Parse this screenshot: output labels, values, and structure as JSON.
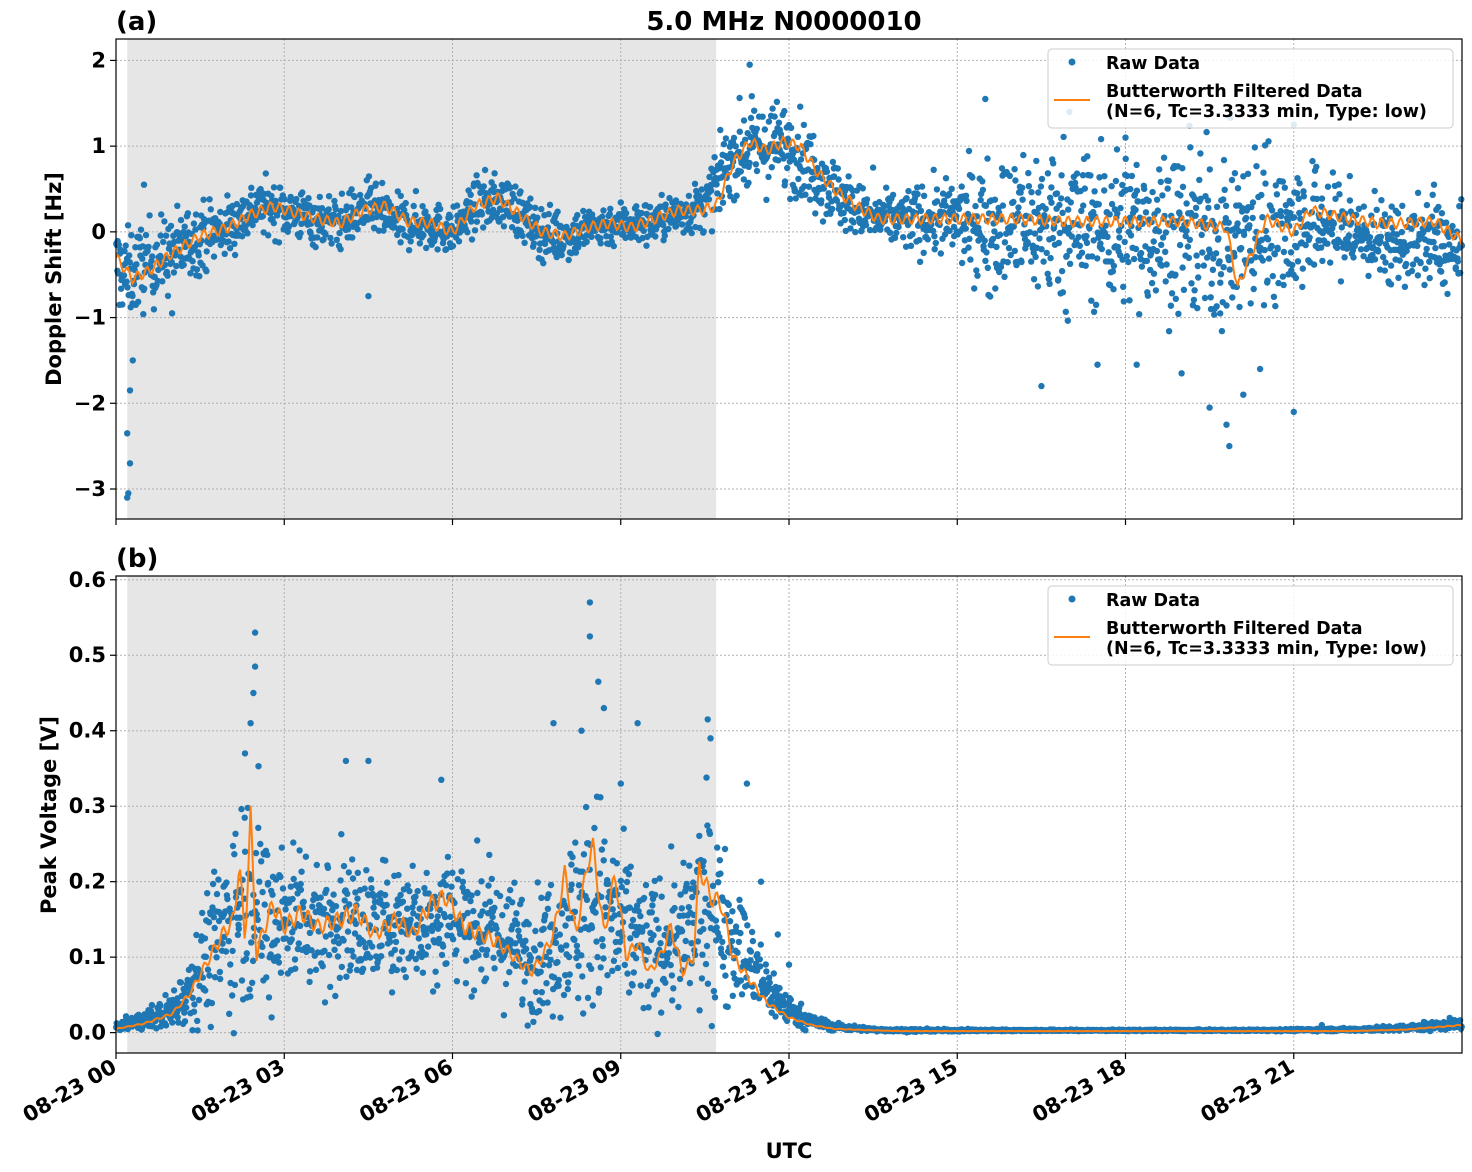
{
  "figure": {
    "title": "5.0 MHz N0000010",
    "xlabel": "UTC",
    "x_tick_labels": [
      "08-23 00",
      "08-23 03",
      "08-23 06",
      "08-23 09",
      "08-23 12",
      "08-23 15",
      "08-23 18",
      "08-23 21"
    ]
  },
  "colors": {
    "raw": "#1f77b4",
    "filtered": "#ff7f0e",
    "night_shade": "#e6e6e6",
    "grid": "#b0b0b0"
  },
  "chart_data": [
    {
      "panel": "(a)",
      "type": "scatter",
      "ylabel": "Doppler Shift [Hz]",
      "x_unit_hours_utc": [
        0,
        24
      ],
      "xlim_hours": [
        0,
        24
      ],
      "ylim": [
        -3.35,
        2.25
      ],
      "y_ticks": [
        -3,
        -2,
        -1,
        0,
        1,
        2
      ],
      "y_tick_labels": [
        "−3",
        "−2",
        "−1",
        "0",
        "1",
        "2"
      ],
      "shaded_interval_hours": [
        0.2,
        10.7
      ],
      "grid": true,
      "legend_position": "upper right",
      "legend": [
        "Raw Data",
        "Butterworth Filtered Data",
        "(N=6, Tc=3.3333 min, Type: low)"
      ],
      "series": [
        {
          "name": "Butterworth Filtered Data",
          "style": "line",
          "x_hours": [
            0,
            0.3,
            0.6,
            1.0,
            1.5,
            2.0,
            2.4,
            2.8,
            3.2,
            3.6,
            4.0,
            4.4,
            4.8,
            5.2,
            5.6,
            6.0,
            6.4,
            6.8,
            7.2,
            7.6,
            8.0,
            8.4,
            8.8,
            9.2,
            9.6,
            10.0,
            10.4,
            10.7,
            11.0,
            11.3,
            11.6,
            11.9,
            12.2,
            12.5,
            12.8,
            13.2,
            13.6,
            14.0,
            15.0,
            16.0,
            17.0,
            18.0,
            19.0,
            19.8,
            20.0,
            20.5,
            21.0,
            21.3,
            22.0,
            22.5,
            23.0,
            23.5,
            24.0
          ],
          "y": [
            -0.3,
            -0.55,
            -0.45,
            -0.25,
            -0.05,
            0.05,
            0.2,
            0.3,
            0.22,
            0.15,
            0.1,
            0.25,
            0.3,
            0.12,
            0.1,
            0.0,
            0.3,
            0.4,
            0.2,
            0.0,
            -0.05,
            0.05,
            0.1,
            0.05,
            0.15,
            0.25,
            0.25,
            0.3,
            0.8,
            1.05,
            0.95,
            1.05,
            1.0,
            0.7,
            0.5,
            0.3,
            0.15,
            0.15,
            0.15,
            0.15,
            0.12,
            0.12,
            0.12,
            0.05,
            -0.65,
            0.15,
            0.0,
            0.25,
            0.15,
            0.1,
            0.1,
            0.12,
            -0.1
          ]
        },
        {
          "name": "Raw Data",
          "style": "points",
          "x_hours": [
            0,
            0.2,
            0.5,
            1.0,
            1.5,
            2.0,
            2.5,
            3.0,
            3.5,
            4.0,
            4.5,
            5.0,
            5.5,
            6.0,
            6.5,
            7.0,
            7.5,
            8.0,
            8.5,
            9.0,
            9.5,
            10.0,
            10.5,
            11.0,
            11.5,
            12.0,
            12.5,
            13.0,
            13.5,
            14.0,
            15.0,
            15.5,
            16.0,
            16.5,
            17.0,
            17.5,
            18.0,
            18.5,
            19.0,
            19.5,
            20.0,
            20.5,
            21.0,
            21.5,
            22.0,
            22.5,
            23.0,
            23.5,
            24.0
          ],
          "y_center": [
            -0.4,
            -0.5,
            -0.4,
            -0.25,
            -0.05,
            0.05,
            0.3,
            0.25,
            0.15,
            0.1,
            0.3,
            0.1,
            0.1,
            0.0,
            0.35,
            0.35,
            0.0,
            -0.05,
            0.05,
            0.1,
            0.1,
            0.2,
            0.3,
            0.9,
            1.0,
            1.0,
            0.7,
            0.35,
            0.15,
            0.15,
            0.15,
            0.1,
            0.1,
            0.1,
            0.1,
            0.05,
            0.05,
            0.05,
            0.0,
            -0.1,
            -0.1,
            0.1,
            0.05,
            0.1,
            0.0,
            -0.1,
            -0.15,
            -0.1,
            -0.3
          ],
          "y_spread": [
            0.5,
            0.5,
            0.5,
            0.45,
            0.4,
            0.35,
            0.3,
            0.3,
            0.3,
            0.3,
            0.3,
            0.3,
            0.3,
            0.25,
            0.3,
            0.3,
            0.3,
            0.3,
            0.25,
            0.25,
            0.25,
            0.25,
            0.3,
            0.45,
            0.5,
            0.5,
            0.45,
            0.35,
            0.25,
            0.35,
            0.45,
            0.75,
            0.75,
            0.9,
            0.9,
            0.9,
            0.9,
            0.9,
            0.9,
            1.0,
            1.0,
            0.9,
            0.8,
            0.6,
            0.5,
            0.45,
            0.45,
            0.5,
            0.5
          ],
          "outliers": [
            [
              0.2,
              -3.1
            ],
            [
              0.22,
              -3.05
            ],
            [
              0.25,
              -2.7
            ],
            [
              0.2,
              -2.35
            ],
            [
              0.25,
              -1.85
            ],
            [
              0.3,
              -1.5
            ],
            [
              0.5,
              0.55
            ],
            [
              1.0,
              -0.95
            ],
            [
              4.5,
              -0.75
            ],
            [
              11.3,
              1.95
            ],
            [
              13.5,
              0.75
            ],
            [
              15.5,
              1.55
            ],
            [
              16.5,
              -1.8
            ],
            [
              17.0,
              1.4
            ],
            [
              17.5,
              -1.55
            ],
            [
              18.0,
              1.1
            ],
            [
              18.2,
              -1.55
            ],
            [
              19.0,
              -1.65
            ],
            [
              19.5,
              -2.05
            ],
            [
              19.8,
              -2.25
            ],
            [
              19.85,
              -2.5
            ],
            [
              20.1,
              -1.9
            ],
            [
              20.4,
              -1.6
            ],
            [
              21.0,
              -2.1
            ],
            [
              21.0,
              1.25
            ],
            [
              22.0,
              0.65
            ],
            [
              22.7,
              -0.6
            ],
            [
              23.5,
              0.55
            ]
          ]
        }
      ]
    },
    {
      "panel": "(b)",
      "type": "scatter",
      "ylabel": "Peak Voltage [V]",
      "x_unit_hours_utc": [
        0,
        24
      ],
      "xlim_hours": [
        0,
        24
      ],
      "ylim": [
        -0.027,
        0.605
      ],
      "y_ticks": [
        0.0,
        0.1,
        0.2,
        0.3,
        0.4,
        0.5,
        0.6
      ],
      "y_tick_labels": [
        "0.0",
        "0.1",
        "0.2",
        "0.3",
        "0.4",
        "0.5",
        "0.6"
      ],
      "shaded_interval_hours": [
        0.2,
        10.7
      ],
      "grid": true,
      "legend_position": "upper right",
      "legend": [
        "Raw Data",
        "Butterworth Filtered Data",
        "(N=6, Tc=3.3333 min, Type: low)"
      ],
      "series": [
        {
          "name": "Butterworth Filtered Data",
          "style": "line",
          "x_hours": [
            0,
            0.5,
            1.0,
            1.3,
            1.6,
            1.9,
            2.1,
            2.2,
            2.3,
            2.4,
            2.5,
            2.6,
            2.8,
            3.0,
            3.3,
            3.6,
            4.0,
            4.3,
            4.6,
            5.0,
            5.3,
            5.6,
            5.9,
            6.2,
            6.5,
            6.8,
            7.1,
            7.4,
            7.6,
            7.8,
            8.0,
            8.2,
            8.4,
            8.5,
            8.7,
            8.9,
            9.1,
            9.3,
            9.5,
            9.7,
            9.9,
            10.1,
            10.3,
            10.4,
            10.6,
            10.8,
            11.0,
            11.3,
            11.6,
            12.0,
            12.4,
            12.8,
            13.5,
            14.0,
            16.0,
            18.0,
            20.0,
            21.0,
            22.0,
            23.0,
            24.0
          ],
          "y": [
            0.005,
            0.012,
            0.025,
            0.05,
            0.09,
            0.13,
            0.15,
            0.225,
            0.12,
            0.29,
            0.1,
            0.13,
            0.17,
            0.14,
            0.16,
            0.14,
            0.15,
            0.16,
            0.13,
            0.15,
            0.13,
            0.17,
            0.18,
            0.14,
            0.13,
            0.12,
            0.1,
            0.08,
            0.1,
            0.13,
            0.21,
            0.13,
            0.22,
            0.25,
            0.13,
            0.21,
            0.1,
            0.12,
            0.08,
            0.1,
            0.14,
            0.08,
            0.1,
            0.22,
            0.18,
            0.17,
            0.1,
            0.07,
            0.04,
            0.02,
            0.01,
            0.005,
            0.003,
            0.002,
            0.002,
            0.002,
            0.002,
            0.002,
            0.002,
            0.004,
            0.01
          ]
        },
        {
          "name": "Raw Data",
          "style": "points",
          "x_hours": [
            0,
            0.5,
            1.0,
            1.3,
            1.6,
            1.9,
            2.1,
            2.4,
            2.7,
            3.0,
            3.5,
            4.0,
            4.5,
            5.0,
            5.5,
            6.0,
            6.5,
            7.0,
            7.5,
            8.0,
            8.3,
            8.6,
            8.9,
            9.2,
            9.5,
            9.8,
            10.1,
            10.4,
            10.7,
            11.0,
            11.3,
            11.6,
            12.0,
            12.4,
            12.8,
            13.5,
            14.0,
            16.0,
            18.0,
            20.0,
            22.0,
            23.0,
            24.0
          ],
          "y_center": [
            0.008,
            0.015,
            0.03,
            0.06,
            0.1,
            0.13,
            0.16,
            0.2,
            0.14,
            0.16,
            0.15,
            0.15,
            0.14,
            0.15,
            0.15,
            0.16,
            0.14,
            0.12,
            0.1,
            0.14,
            0.16,
            0.17,
            0.14,
            0.13,
            0.11,
            0.12,
            0.12,
            0.16,
            0.16,
            0.13,
            0.09,
            0.06,
            0.03,
            0.015,
            0.008,
            0.004,
            0.003,
            0.003,
            0.003,
            0.003,
            0.004,
            0.006,
            0.012
          ],
          "y_spread": [
            0.005,
            0.012,
            0.025,
            0.05,
            0.08,
            0.11,
            0.13,
            0.15,
            0.12,
            0.1,
            0.09,
            0.09,
            0.08,
            0.08,
            0.08,
            0.09,
            0.08,
            0.08,
            0.08,
            0.1,
            0.14,
            0.15,
            0.12,
            0.1,
            0.09,
            0.09,
            0.09,
            0.13,
            0.12,
            0.08,
            0.06,
            0.04,
            0.02,
            0.01,
            0.005,
            0.002,
            0.002,
            0.001,
            0.001,
            0.001,
            0.002,
            0.004,
            0.008
          ],
          "outliers": [
            [
              2.48,
              0.53
            ],
            [
              2.48,
              0.485
            ],
            [
              2.45,
              0.45
            ],
            [
              2.4,
              0.41
            ],
            [
              2.3,
              0.37
            ],
            [
              4.1,
              0.36
            ],
            [
              4.5,
              0.36
            ],
            [
              5.8,
              0.335
            ],
            [
              7.8,
              0.41
            ],
            [
              8.3,
              0.4
            ],
            [
              8.45,
              0.57
            ],
            [
              8.45,
              0.525
            ],
            [
              8.6,
              0.465
            ],
            [
              8.7,
              0.43
            ],
            [
              9.0,
              0.33
            ],
            [
              9.3,
              0.41
            ],
            [
              10.55,
              0.415
            ],
            [
              10.6,
              0.39
            ],
            [
              11.25,
              0.33
            ],
            [
              11.5,
              0.2
            ],
            [
              11.8,
              0.13
            ],
            [
              12.0,
              0.09
            ],
            [
              21.5,
              0.01
            ]
          ]
        }
      ]
    }
  ]
}
